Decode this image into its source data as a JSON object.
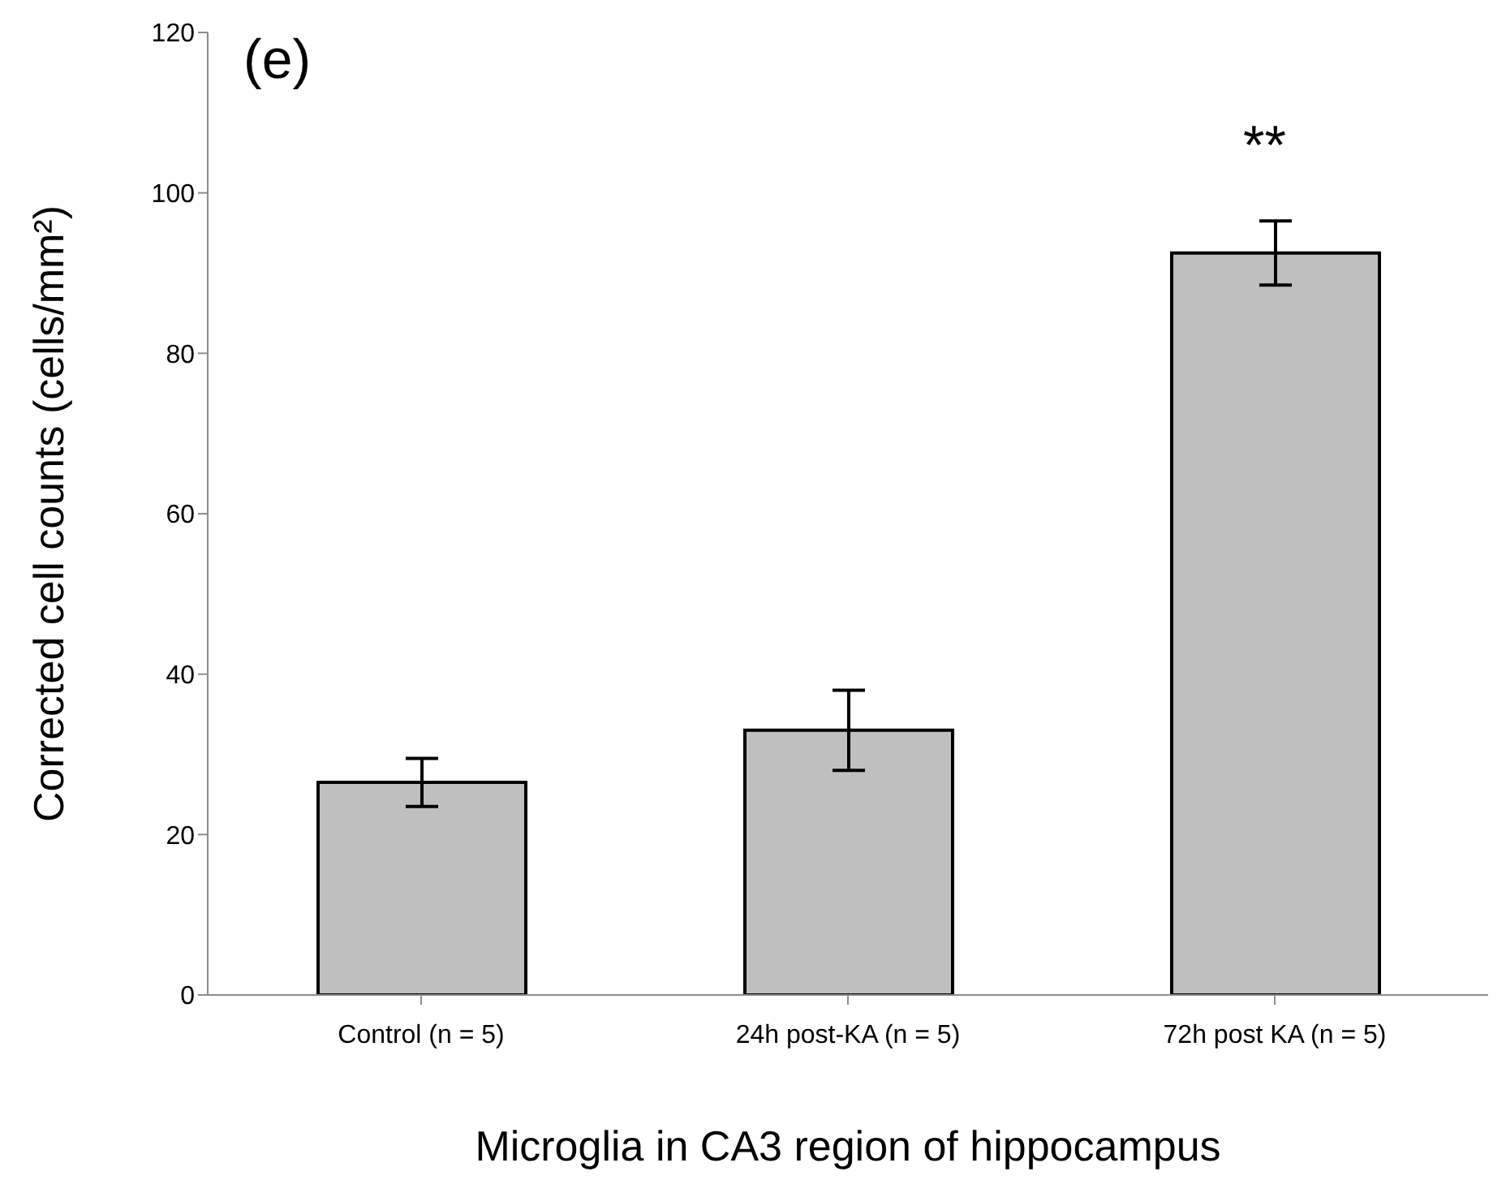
{
  "chart_data": {
    "type": "bar",
    "title": "(e)",
    "xlabel": "Microglia in CA3 region of hippocampus",
    "ylabel": "Corrected cell counts (cells/mm²)",
    "categories": [
      "Control (n = 5)",
      "24h post-KA (n = 5)",
      "72h post KA (n = 5)"
    ],
    "values": [
      26.5,
      33,
      92.5
    ],
    "errors": [
      3,
      5,
      4
    ],
    "color": "#bfbfbf",
    "ylim": [
      0,
      120
    ],
    "yticks": [
      0,
      20,
      40,
      60,
      80,
      100,
      120
    ],
    "grid": false,
    "annotations": [
      "**"
    ]
  }
}
